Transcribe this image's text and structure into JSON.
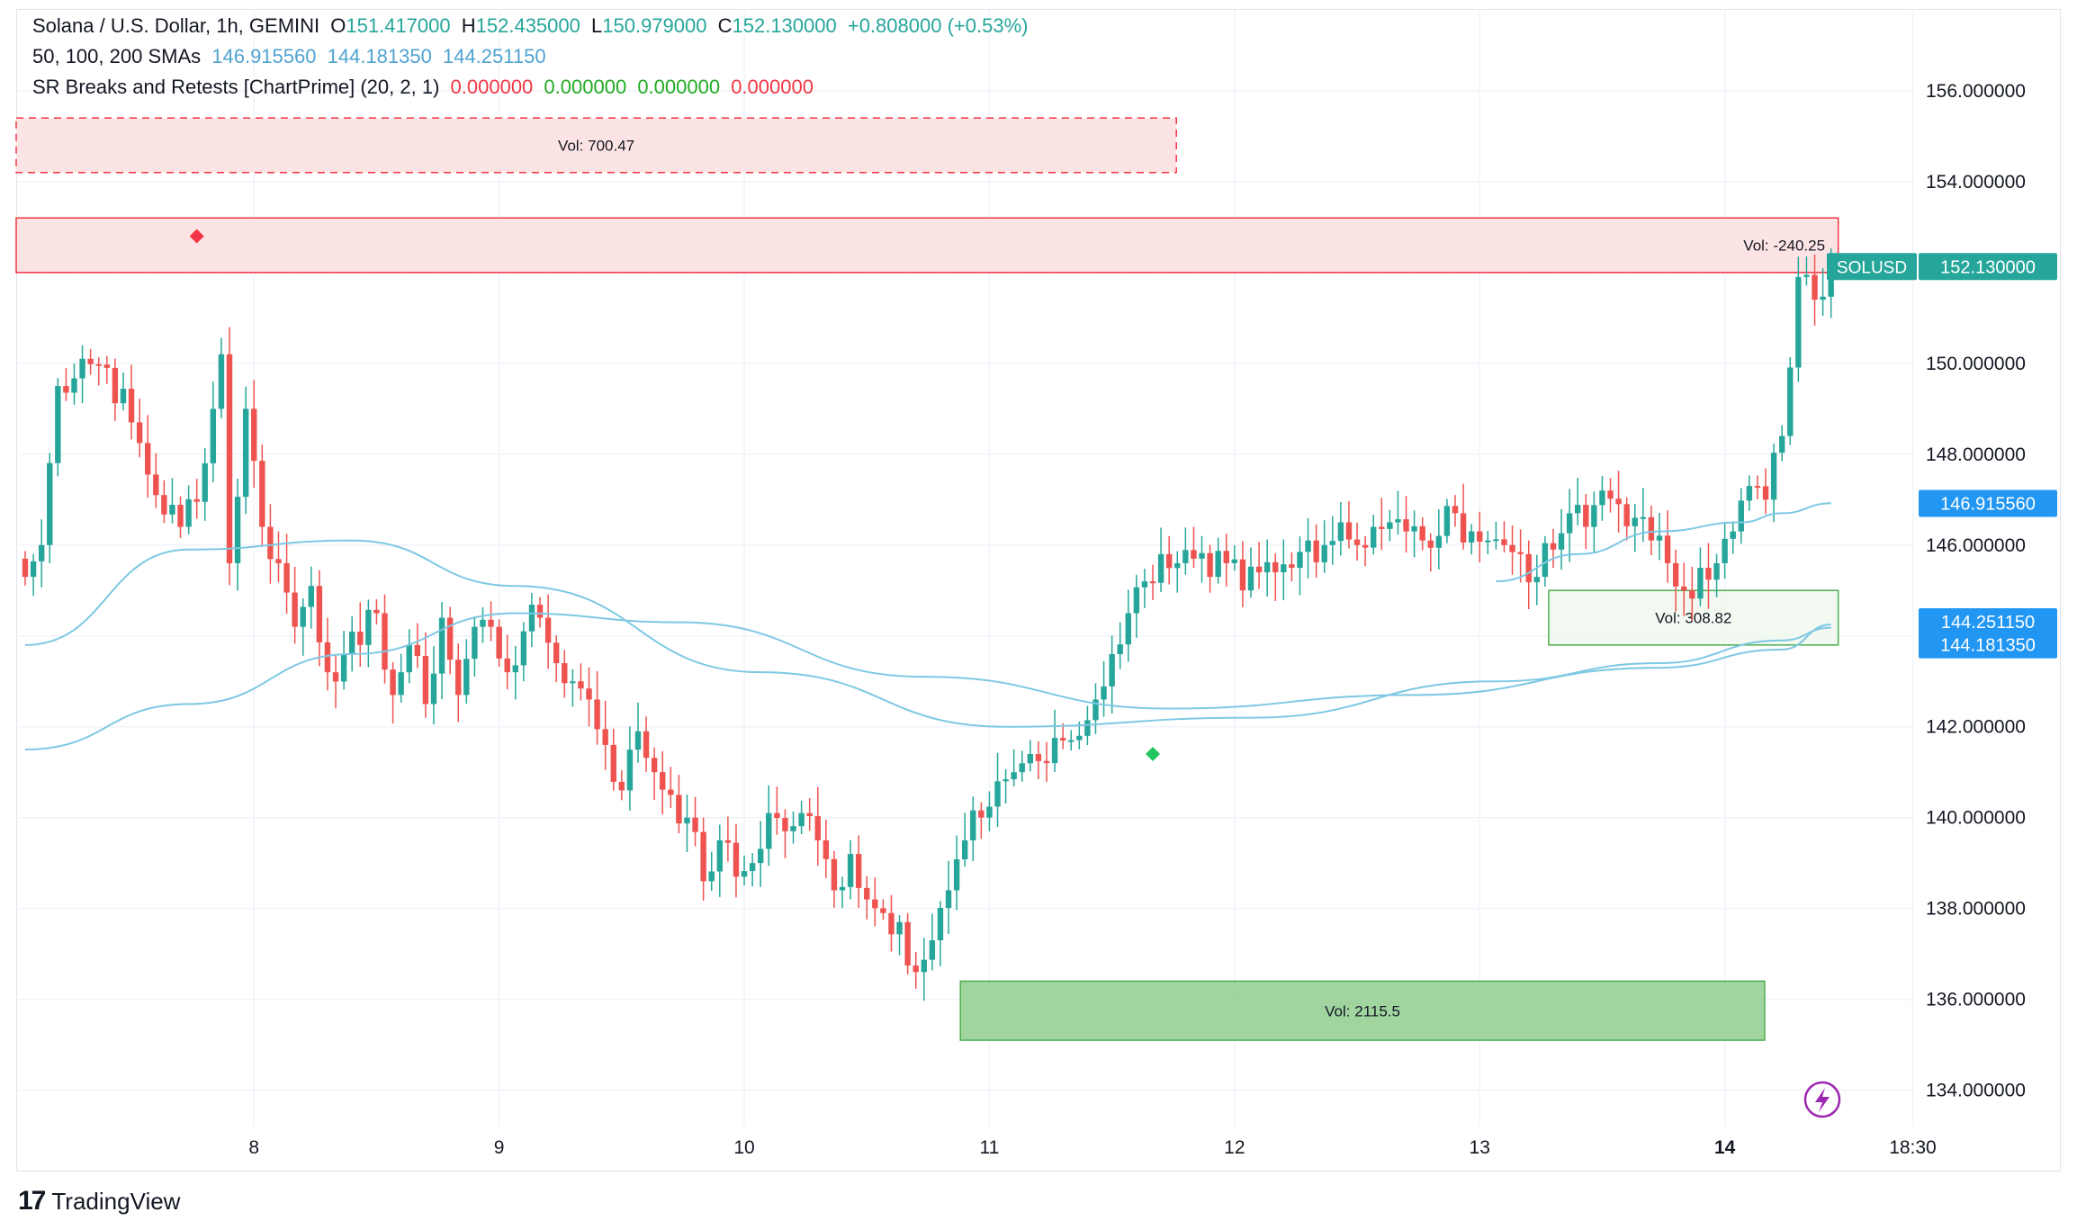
{
  "header": {
    "symbol_title": "Solana / U.S. Dollar, 1h, GEMINI",
    "ohlc": {
      "o_label": "O",
      "o": "151.417000",
      "h_label": "H",
      "h": "152.435000",
      "l_label": "L",
      "l": "150.979000",
      "c_label": "C",
      "c": "152.130000",
      "change": "+0.808000 (+0.53%)"
    },
    "sma_label": "50, 100, 200 SMAs",
    "sma_values": [
      "146.915560",
      "144.181350",
      "144.251150"
    ],
    "sr_label": "SR Breaks and Retests [ChartPrime] (20, 2, 1)",
    "sr_values": [
      "0.000000",
      "0.000000",
      "0.000000",
      "0.000000"
    ]
  },
  "colors": {
    "up": "#26a69a",
    "down": "#ef5350",
    "sma": "#7ec8e3",
    "resistance_fill": "#fde1e1",
    "resistance_stroke": "#f23645",
    "support_fill": "#8fce8f",
    "support_stroke": "#4caf50",
    "marker_red": "#f23645",
    "marker_green": "#22c55e",
    "price_label_bg": "#26a69a",
    "sma_label_bg": "#2196f3"
  },
  "price_axis": {
    "ticks": [
      "156.000000",
      "154.000000",
      "152.000000",
      "150.000000",
      "148.000000",
      "146.000000",
      "144.000000",
      "142.000000",
      "140.000000",
      "138.000000",
      "136.000000",
      "134.000000"
    ],
    "last_price_symbol": "SOLUSD",
    "last_price": "152.130000",
    "sma_labels": [
      "146.915560",
      "144.251150",
      "144.181350"
    ]
  },
  "time_axis": {
    "ticks": [
      "8",
      "9",
      "10",
      "11",
      "12",
      "13",
      "14",
      "18:30"
    ]
  },
  "zones": [
    {
      "type": "resistance",
      "label": "Vol: 700.47"
    },
    {
      "type": "resistance",
      "label": "Vol: -240.25"
    },
    {
      "type": "support",
      "label": "Vol: 308.82"
    },
    {
      "type": "support",
      "label": "Vol: 2115.5"
    }
  ],
  "branding": {
    "logo_text": "TradingView"
  },
  "chart_data": {
    "type": "candlestick",
    "title": "Solana / U.S. Dollar, 1h, GEMINI",
    "ylim": [
      133.2,
      157.8
    ],
    "y_ticks": [
      134,
      136,
      138,
      140,
      142,
      144,
      146,
      148,
      150,
      152,
      154,
      156
    ],
    "x_ticks": [
      "8",
      "9",
      "10",
      "11",
      "12",
      "13",
      "14",
      "18:30"
    ],
    "x_tick_bars": [
      28,
      58,
      88,
      118,
      148,
      178,
      208,
      231
    ],
    "bar_count": 222,
    "close_anchors": [
      [
        0,
        145.3
      ],
      [
        2,
        146.0
      ],
      [
        4,
        149.5
      ],
      [
        7,
        150.1
      ],
      [
        10,
        149.9
      ],
      [
        13,
        148.7
      ],
      [
        16,
        147.1
      ],
      [
        19,
        146.4
      ],
      [
        22,
        147.8
      ],
      [
        24,
        150.2
      ],
      [
        25,
        145.6
      ],
      [
        27,
        149.0
      ],
      [
        29,
        146.4
      ],
      [
        31,
        145.6
      ],
      [
        33,
        144.2
      ],
      [
        35,
        145.1
      ],
      [
        37,
        143.2
      ],
      [
        39,
        143.6
      ],
      [
        41,
        143.8
      ],
      [
        43,
        144.5
      ],
      [
        45,
        142.7
      ],
      [
        47,
        143.8
      ],
      [
        49,
        142.5
      ],
      [
        51,
        144.4
      ],
      [
        53,
        142.7
      ],
      [
        55,
        144.2
      ],
      [
        57,
        144.2
      ],
      [
        59,
        143.2
      ],
      [
        61,
        144.1
      ],
      [
        63,
        144.4
      ],
      [
        65,
        143.4
      ],
      [
        67,
        143.0
      ],
      [
        69,
        142.6
      ],
      [
        71,
        141.6
      ],
      [
        73,
        140.6
      ],
      [
        75,
        141.9
      ],
      [
        77,
        141.0
      ],
      [
        79,
        140.5
      ],
      [
        81,
        140.0
      ],
      [
        83,
        138.6
      ],
      [
        85,
        139.5
      ],
      [
        87,
        138.7
      ],
      [
        89,
        139.0
      ],
      [
        91,
        140.1
      ],
      [
        93,
        139.7
      ],
      [
        95,
        140.1
      ],
      [
        97,
        139.5
      ],
      [
        99,
        138.4
      ],
      [
        101,
        139.2
      ],
      [
        103,
        138.2
      ],
      [
        105,
        137.9
      ],
      [
        107,
        137.7
      ],
      [
        109,
        136.6
      ],
      [
        111,
        137.3
      ],
      [
        113,
        138.4
      ],
      [
        115,
        139.5
      ],
      [
        117,
        140.0
      ],
      [
        119,
        140.8
      ],
      [
        121,
        141.0
      ],
      [
        123,
        141.4
      ],
      [
        125,
        141.2
      ],
      [
        127,
        141.7
      ],
      [
        129,
        141.8
      ],
      [
        131,
        142.6
      ],
      [
        133,
        143.6
      ],
      [
        135,
        144.5
      ],
      [
        137,
        145.2
      ],
      [
        139,
        145.8
      ],
      [
        141,
        145.6
      ],
      [
        143,
        145.7
      ],
      [
        145,
        145.3
      ],
      [
        147,
        145.6
      ],
      [
        149,
        145.0
      ],
      [
        151,
        145.4
      ],
      [
        153,
        145.4
      ],
      [
        155,
        145.5
      ],
      [
        157,
        146.1
      ],
      [
        159,
        146.0
      ],
      [
        161,
        146.5
      ],
      [
        163,
        146.0
      ],
      [
        165,
        146.4
      ],
      [
        167,
        146.5
      ],
      [
        169,
        146.3
      ],
      [
        171,
        146.1
      ],
      [
        173,
        146.2
      ],
      [
        175,
        146.7
      ],
      [
        177,
        146.3
      ],
      [
        179,
        146.1
      ],
      [
        181,
        146.0
      ],
      [
        183,
        145.8
      ],
      [
        185,
        145.3
      ],
      [
        187,
        145.9
      ],
      [
        189,
        146.7
      ],
      [
        191,
        146.4
      ],
      [
        193,
        147.2
      ],
      [
        195,
        146.9
      ],
      [
        197,
        146.6
      ],
      [
        199,
        146.1
      ],
      [
        201,
        145.6
      ],
      [
        203,
        145.0
      ],
      [
        205,
        145.5
      ],
      [
        207,
        145.6
      ],
      [
        209,
        146.3
      ],
      [
        211,
        147.3
      ],
      [
        213,
        147.0
      ],
      [
        215,
        148.4
      ],
      [
        217,
        151.9
      ],
      [
        219,
        151.4
      ],
      [
        221,
        152.13
      ]
    ],
    "series": [
      {
        "name": "SMA 50",
        "last": 146.91556,
        "points": [
          [
            180,
            145.2
          ],
          [
            190,
            145.8
          ],
          [
            200,
            146.3
          ],
          [
            210,
            146.5
          ],
          [
            215,
            146.7
          ],
          [
            221,
            146.92
          ]
        ]
      },
      {
        "name": "SMA 100",
        "last": 144.18135,
        "points": [
          [
            0,
            143.8
          ],
          [
            20,
            145.9
          ],
          [
            40,
            146.1
          ],
          [
            60,
            145.1
          ],
          [
            90,
            143.2
          ],
          [
            120,
            142.0
          ],
          [
            150,
            142.2
          ],
          [
            180,
            143.0
          ],
          [
            200,
            143.4
          ],
          [
            215,
            143.9
          ],
          [
            221,
            144.18
          ]
        ]
      },
      {
        "name": "SMA 200",
        "last": 144.25115,
        "points": [
          [
            0,
            141.5
          ],
          [
            20,
            142.5
          ],
          [
            40,
            143.6
          ],
          [
            60,
            144.5
          ],
          [
            80,
            144.3
          ],
          [
            110,
            143.1
          ],
          [
            140,
            142.4
          ],
          [
            170,
            142.7
          ],
          [
            200,
            143.3
          ],
          [
            215,
            143.7
          ],
          [
            221,
            144.25
          ]
        ]
      }
    ],
    "zones": [
      {
        "type": "resistance",
        "label": "Vol: 700.47",
        "bar_start": 0,
        "bar_end": 140,
        "top": 155.4,
        "bottom": 154.2
      },
      {
        "type": "resistance",
        "label": "Vol: -240.25",
        "bar_start": 0,
        "bar_end": 221,
        "top": 153.2,
        "bottom": 152.0
      },
      {
        "type": "support",
        "label": "Vol: 308.82",
        "bar_start": 187,
        "bar_end": 221,
        "top": 145.0,
        "bottom": 143.8
      },
      {
        "type": "support",
        "label": "Vol: 2115.5",
        "bar_start": 115,
        "bar_end": 212,
        "top": 136.4,
        "bottom": 135.1
      }
    ],
    "markers": [
      {
        "type": "resistance-break",
        "bar": 21,
        "price": 152.8
      },
      {
        "type": "support-retest",
        "bar": 138,
        "price": 141.4
      }
    ]
  }
}
